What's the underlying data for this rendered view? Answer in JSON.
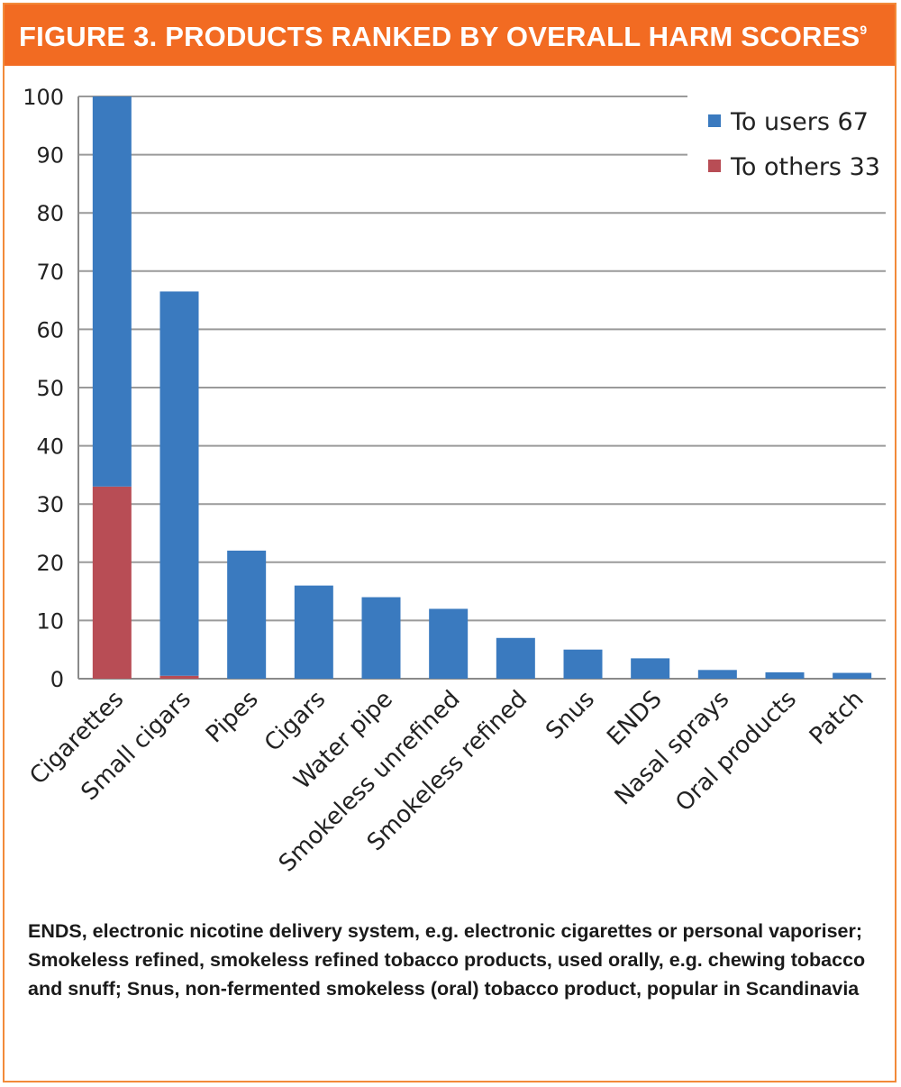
{
  "header": {
    "title": "FIGURE 3. PRODUCTS RANKED BY OVERALL HARM SCORES",
    "superscript": "9"
  },
  "chart_data": {
    "type": "bar",
    "stacked": true,
    "title": "FIGURE 3. PRODUCTS RANKED BY OVERALL HARM SCORES",
    "categories": [
      "Cigarettes",
      "Small cigars",
      "Pipes",
      "Cigars",
      "Water pipe",
      "Smokeless unrefined",
      "Smokeless refined",
      "Snus",
      "ENDS",
      "Nasal sprays",
      "Oral products",
      "Patch"
    ],
    "series": [
      {
        "name": "To others",
        "color": "#b84d55",
        "values": [
          33,
          0.5,
          0,
          0,
          0,
          0,
          0,
          0,
          0,
          0,
          0,
          0
        ]
      },
      {
        "name": "To users",
        "color": "#3a7abf",
        "values": [
          67,
          66,
          22,
          16,
          14,
          12,
          7,
          5,
          3.5,
          1.5,
          1.1,
          1
        ]
      }
    ],
    "legend": [
      {
        "label": "To users 67",
        "color": "#3a7abf"
      },
      {
        "label": "To others 33",
        "color": "#b84d55"
      }
    ],
    "legend_position": "top-right",
    "yticks": [
      "0",
      "10",
      "20",
      "30",
      "40",
      "50",
      "60",
      "70",
      "80",
      "90",
      "100"
    ],
    "ylim": [
      0,
      100
    ],
    "xlabel": "",
    "ylabel": "",
    "grid": true
  },
  "caption": {
    "ends_term": "ENDS",
    "ends_def": ", electronic nicotine delivery system, e.g. electronic cigarettes or personal vaporiser; ",
    "refined_term": "Smokeless refined",
    "refined_def": ", smokeless refined tobacco products, used orally, e.g. chewing tobacco and snuff; ",
    "snus_term": "Snus",
    "snus_def": ", non-fermented smokeless (oral) tobacco product, popular in Scandinavia"
  }
}
